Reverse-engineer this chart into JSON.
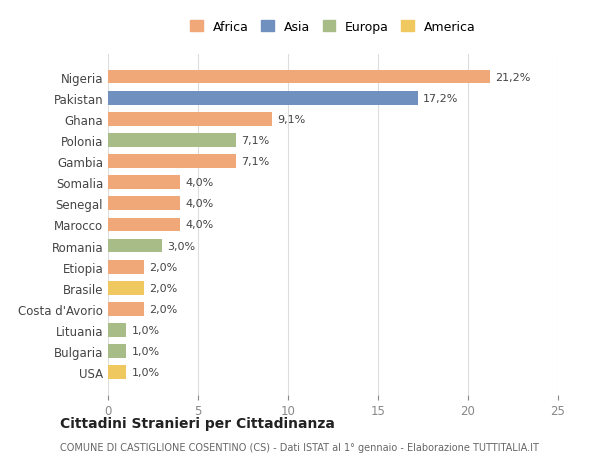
{
  "countries": [
    "Nigeria",
    "Pakistan",
    "Ghana",
    "Polonia",
    "Gambia",
    "Somalia",
    "Senegal",
    "Marocco",
    "Romania",
    "Etiopia",
    "Brasile",
    "Costa d'Avorio",
    "Lituania",
    "Bulgaria",
    "USA"
  ],
  "values": [
    21.2,
    17.2,
    9.1,
    7.1,
    7.1,
    4.0,
    4.0,
    4.0,
    3.0,
    2.0,
    2.0,
    2.0,
    1.0,
    1.0,
    1.0
  ],
  "labels": [
    "21,2%",
    "17,2%",
    "9,1%",
    "7,1%",
    "7,1%",
    "4,0%",
    "4,0%",
    "4,0%",
    "3,0%",
    "2,0%",
    "2,0%",
    "2,0%",
    "1,0%",
    "1,0%",
    "1,0%"
  ],
  "continents": [
    "Africa",
    "Asia",
    "Africa",
    "Europa",
    "Africa",
    "Africa",
    "Africa",
    "Africa",
    "Europa",
    "Africa",
    "America",
    "Africa",
    "Europa",
    "Europa",
    "America"
  ],
  "colors": {
    "Africa": "#F0A878",
    "Asia": "#7090C0",
    "Europa": "#A8BC88",
    "America": "#F0C860"
  },
  "legend_order": [
    "Africa",
    "Asia",
    "Europa",
    "America"
  ],
  "title": "Cittadini Stranieri per Cittadinanza",
  "subtitle": "COMUNE DI CASTIGLIONE COSENTINO (CS) - Dati ISTAT al 1° gennaio - Elaborazione TUTTITALIA.IT",
  "xlim": [
    0,
    25
  ],
  "xticks": [
    0,
    5,
    10,
    15,
    20,
    25
  ],
  "background_color": "#ffffff",
  "grid_color": "#dddddd"
}
